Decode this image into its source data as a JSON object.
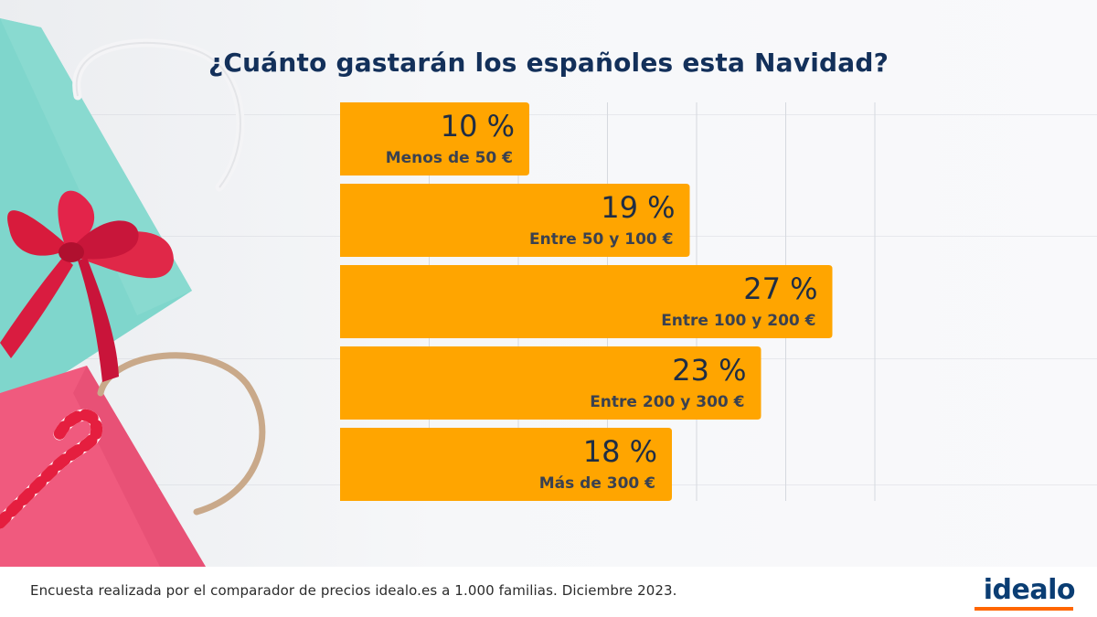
{
  "title": "¿Cuánto gastarán los españoles esta Navidad?",
  "footer": {
    "note": "Encuesta realizada por el comparador de precios idealo.es a 1.000 familias. Diciembre 2023.",
    "logo": "idealo"
  },
  "colors": {
    "bar": "#ffa500",
    "title": "#13305a",
    "value_text": "#1f2d44",
    "label_text": "#3a4150",
    "logo_blue": "#0a3d73",
    "logo_orange": "#ff6600"
  },
  "chart_data": {
    "type": "bar",
    "orientation": "horizontal",
    "title": "¿Cuánto gastarán los españoles esta Navidad?",
    "categories": [
      "Menos de 50 €",
      "Entre 50 y 100 €",
      "Entre 100 y 200 €",
      "Entre 200 y 300 €",
      "Más de 300 €"
    ],
    "values": [
      10,
      19,
      27,
      23,
      18
    ],
    "value_labels": [
      "10 %",
      "19 %",
      "27 %",
      "23 %",
      "18 %"
    ],
    "unit": "%",
    "xlim": [
      0,
      30
    ],
    "grid": true,
    "legend": "none"
  }
}
